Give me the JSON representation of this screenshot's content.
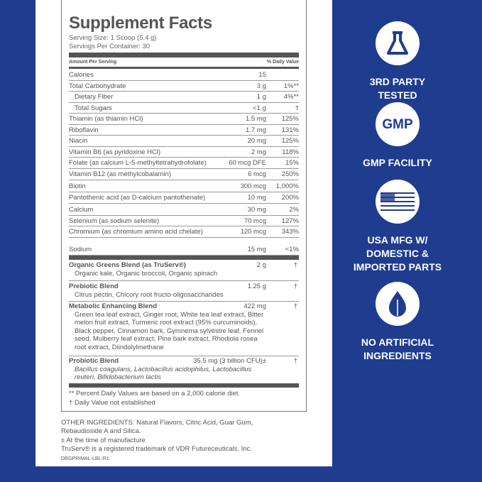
{
  "facts": {
    "title": "Supplement Facts",
    "serving_size": "Serving Size: 1 Scoop (5.4 g)",
    "servings": "Servings Per Container: 30",
    "amount_header": "Amount Per Serving",
    "dv_header": "% Daily Value",
    "rows": [
      {
        "name": "Calories",
        "amount": "15",
        "dv": ""
      },
      {
        "name": "Total Carbohydrate",
        "amount": "3 g",
        "dv": "1%**"
      },
      {
        "name": "Dietary Fiber",
        "amount": "1 g",
        "dv": "4%**"
      },
      {
        "name": "Total Sugars",
        "amount": "<1 g",
        "dv": "†"
      },
      {
        "name": "Thiamin (as thiamin HCl)",
        "amount": "1.5 mg",
        "dv": "125%"
      },
      {
        "name": "Riboflavin",
        "amount": "1.7 mg",
        "dv": "131%"
      },
      {
        "name": "Niacin",
        "amount": "20 mg",
        "dv": "125%"
      },
      {
        "name": "Vitamin B6 (as pyridoxine HCl)",
        "amount": "2 mg",
        "dv": "118%"
      },
      {
        "name": "Folate (as calcium L-5-methyltetrahydrofolate)",
        "amount": "60 mcg DFE",
        "dv": "15%"
      },
      {
        "name": "Vitamin B12 (as methylcobalamin)",
        "amount": "6 mcg",
        "dv": "250%"
      },
      {
        "name": "Biotin",
        "amount": "300 mcg",
        "dv": "1,000%"
      },
      {
        "name": "Pantothenic acid (as D-calcium pantothenate)",
        "amount": "10 mg",
        "dv": "200%"
      },
      {
        "name": "Calcium",
        "amount": "30 mg",
        "dv": "2%"
      },
      {
        "name": "Selenium (as sodium selenite)",
        "amount": "70 mcg",
        "dv": "127%"
      },
      {
        "name": "Chromium (as chromium amino acid chelate)",
        "amount": "120 mcg",
        "dv": "343%"
      },
      {
        "name": "Sodium",
        "amount": "15 mg",
        "dv": "<1%"
      }
    ],
    "blends": [
      {
        "name": "Organic Greens Blend (as TruServ®)",
        "amount": "2 g",
        "dv": "†",
        "ingredients": "Organic kale, Organic broccoli, Organic spinach"
      },
      {
        "name": "Prebiotic Blend",
        "amount": "1.25 g",
        "dv": "†",
        "ingredients": "Citrus pectin, Chicory root fructo-oligosaccharides"
      },
      {
        "name": "Metabolic Enhancing Blend",
        "amount": "422 mg",
        "dv": "†",
        "ingredients": "Green tea leaf extract, Ginger root, White tea leaf extract, Bitter melon fruit extract, Turmeric root extract (95% curcuminoids), Black pepper, Cinnamon bark, Gymnema sylvestre leaf, Fennel seed, Mulberry leaf extract, Pine bark extract, Rhodiola rosea root extract, Diindolylmethane"
      },
      {
        "name": "Probiotic Blend",
        "amount": "35.5 mg (3 billion CFU)±",
        "dv": "†",
        "ingredients": "Bacillus coagulans, Lactobacillus acidophilus, Lactobacillus reuteri, Bifidobacterium lactis"
      }
    ],
    "footnote1": "** Percent Daily Values are based on a 2,000 calorie diet.",
    "footnote2": "† Daily Value not established"
  },
  "other": {
    "ingredients": "OTHER INGREDIENTS: Natural Flavors, Citric Acid, Guar Gum, Rebaudioside A and Silica.",
    "manufacture": "± At the time of manufacture",
    "trademark": "TruServ® is a registered trademark of VDR Futureceuticals, Inc.",
    "code": "DRGPRIMAL-LBL-R1"
  },
  "badges": [
    {
      "icon": "flask-icon",
      "label1": "3RD PARTY",
      "label2": "TESTED"
    },
    {
      "icon": "gmp-icon",
      "icon_text": "GMP",
      "label1": "GMP FACILITY",
      "label2": ""
    },
    {
      "icon": "us-flag-icon",
      "label1": "USA MFG W/",
      "label2": "DOMESTIC &",
      "label3": "IMPORTED PARTS"
    },
    {
      "icon": "leaf-icon",
      "label1": "NO ARTIFICIAL",
      "label2": "INGREDIENTS"
    }
  ],
  "colors": {
    "background": "#1f3c8f",
    "text": "#555555",
    "white": "#ffffff"
  }
}
